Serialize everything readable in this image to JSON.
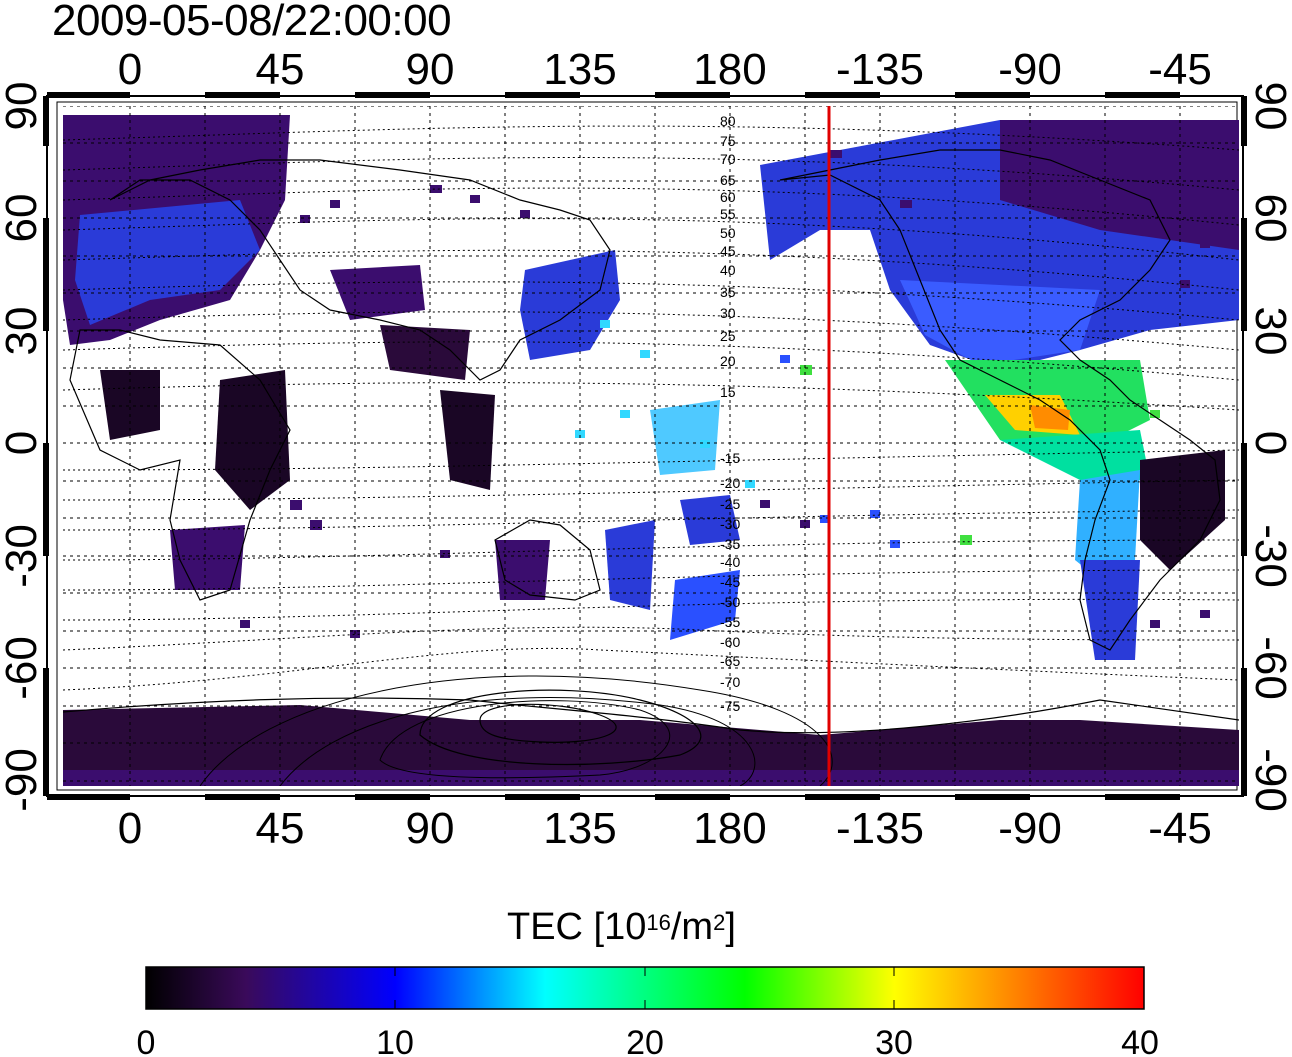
{
  "timestamp": "2009-05-08/22:00:00",
  "map": {
    "top_lon_ticks": [
      "0",
      "45",
      "90",
      "135",
      "180",
      "-135",
      "-90",
      "-45"
    ],
    "bottom_lon_ticks": [
      "0",
      "45",
      "90",
      "135",
      "180",
      "-135",
      "-90",
      "-45"
    ],
    "left_lat_ticks": [
      "90",
      "60",
      "30",
      "0",
      "-30",
      "-60",
      "-90"
    ],
    "right_lat_ticks": [
      "90",
      "60",
      "30",
      "0",
      "-30",
      "-60",
      "-90"
    ],
    "magnetic_latitude_labels": [
      "80",
      "75",
      "70",
      "65",
      "60",
      "55",
      "50",
      "45",
      "40",
      "35",
      "30",
      "25",
      "20",
      "15",
      "-15",
      "-20",
      "-25",
      "-30",
      "-35",
      "-40",
      "-45",
      "-50",
      "-55",
      "-60",
      "-65",
      "-70",
      "-75"
    ],
    "terminator_longitude": -150,
    "colors": {
      "terminator": "#e00000",
      "grid": "#000000"
    }
  },
  "colorbar": {
    "title_main": "TEC  [10",
    "title_exp1": "16",
    "title_mid": "/m",
    "title_exp2": "2",
    "title_end": "]",
    "ticks": [
      "0",
      "10",
      "20",
      "30",
      "40"
    ],
    "range": [
      0,
      40
    ],
    "colormap": [
      "#000000",
      "#3a0a5a",
      "#0000ff",
      "#00ffff",
      "#00ff00",
      "#ffff00",
      "#ff0000"
    ]
  }
}
